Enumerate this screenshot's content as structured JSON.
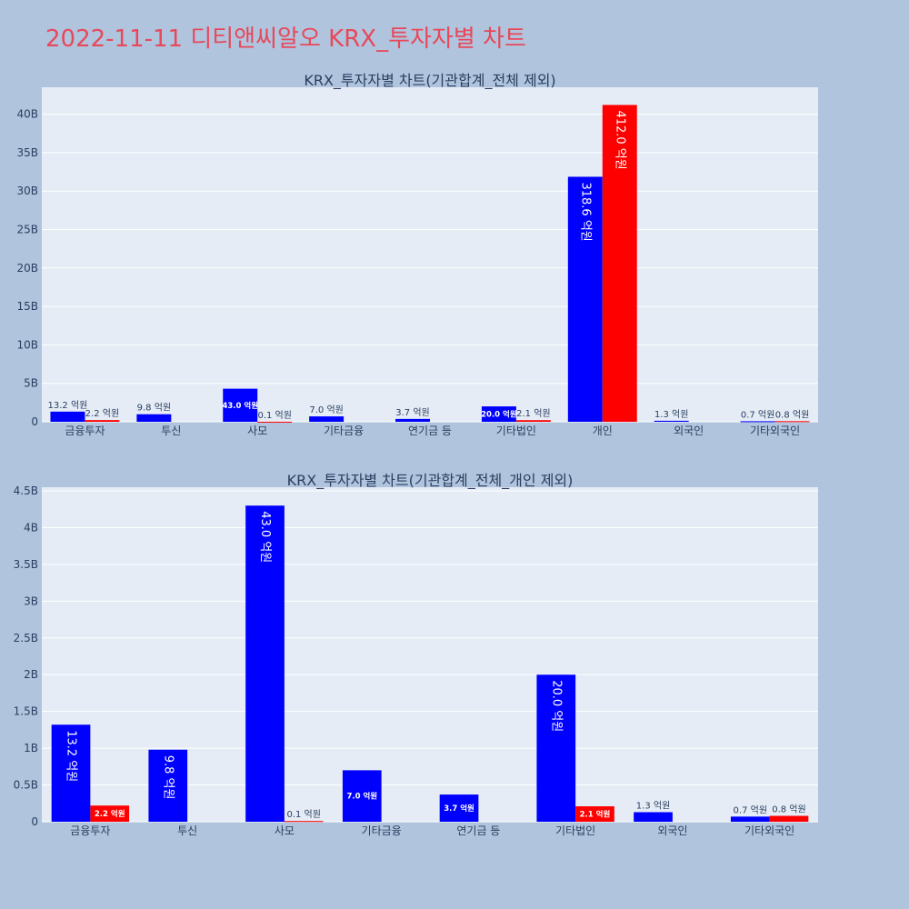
{
  "title": "2022-11-11 디티앤씨알오 KRX_투자자별 차트",
  "colors": {
    "background": "#b0c4de",
    "plot_bg": "#e5ecf6",
    "title": "#e8485a",
    "buy": "#0000ff",
    "sell": "#ff0000",
    "text": "#2a3f5f"
  },
  "chart_data": [
    {
      "type": "bar",
      "title": "KRX_투자자별 차트(기관합계_전체 제외)",
      "categories": [
        "금융투자",
        "투신",
        "사모",
        "기타금융",
        "연기금 등",
        "기타법인",
        "개인",
        "외국인",
        "기타외국인"
      ],
      "series": [
        {
          "color": "#0000ff",
          "values": [
            1320000000.0,
            980000000.0,
            4300000000.0,
            700000000.0,
            370000000.0,
            2000000000.0,
            31860000000.0,
            130000000.0,
            70000000.0
          ],
          "labels": [
            "13.2 억원",
            "9.8 억원",
            "43.0 억원",
            "7.0 억원",
            "3.7 억원",
            "20.0 억원",
            "318.6 억원",
            "1.3 억원",
            "0.7 억원"
          ]
        },
        {
          "color": "#ff0000",
          "values": [
            220000000.0,
            0,
            10000000.0,
            0,
            0,
            210000000.0,
            41200000000.0,
            0,
            80000000.0
          ],
          "labels": [
            "2.2 억원",
            "",
            "0.1 억원",
            "",
            "",
            "2.1 억원",
            "412.0 억원",
            "",
            "0.8 억원"
          ]
        }
      ],
      "ylim": [
        0,
        43500000000.0
      ],
      "yticks": [
        0,
        5000000000.0,
        10000000000.0,
        15000000000.0,
        20000000000.0,
        25000000000.0,
        30000000000.0,
        35000000000.0,
        40000000000.0
      ],
      "ytick_labels": [
        "0",
        "5B",
        "10B",
        "15B",
        "20B",
        "25B",
        "30B",
        "35B",
        "40B"
      ],
      "grid": true
    },
    {
      "type": "bar",
      "title": "KRX_투자자별 차트(기관합계_전체_개인 제외)",
      "categories": [
        "금융투자",
        "투신",
        "사모",
        "기타금융",
        "연기금 등",
        "기타법인",
        "외국인",
        "기타외국인"
      ],
      "series": [
        {
          "color": "#0000ff",
          "values": [
            1320000000.0,
            980000000.0,
            4300000000.0,
            700000000.0,
            370000000.0,
            2000000000.0,
            130000000.0,
            70000000.0
          ],
          "labels": [
            "13.2 억원",
            "9.8 억원",
            "43.0 억원",
            "7.0 억원",
            "3.7 억원",
            "20.0 억원",
            "1.3 억원",
            "0.7 억원"
          ]
        },
        {
          "color": "#ff0000",
          "values": [
            220000000.0,
            0,
            10000000.0,
            0,
            0,
            210000000.0,
            0,
            80000000.0
          ],
          "labels": [
            "2.2 억원",
            "",
            "0.1 억원",
            "",
            "",
            "2.1 억원",
            "",
            "0.8 억원"
          ]
        }
      ],
      "ylim": [
        0,
        4550000000.0
      ],
      "yticks": [
        0,
        500000000.0,
        1000000000.0,
        1500000000.0,
        2000000000.0,
        2500000000.0,
        3000000000.0,
        3500000000.0,
        4000000000.0,
        4500000000.0
      ],
      "ytick_labels": [
        "0",
        "0.5B",
        "1B",
        "1.5B",
        "2B",
        "2.5B",
        "3B",
        "3.5B",
        "4B",
        "4.5B"
      ],
      "grid": true
    }
  ]
}
